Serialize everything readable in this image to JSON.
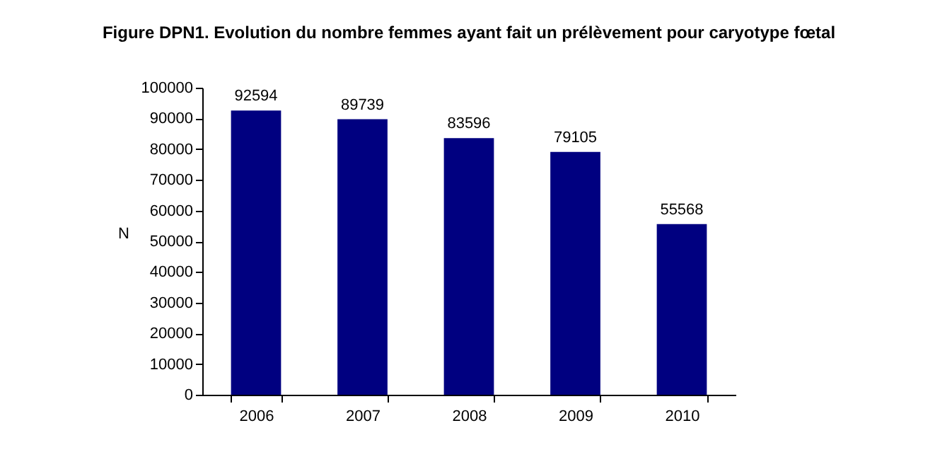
{
  "chart_data": {
    "type": "bar",
    "title": "Figure DPN1. Evolution du nombre femmes ayant fait un prélèvement pour caryotype fœtal",
    "ylabel": "N",
    "categories": [
      "2006",
      "2007",
      "2008",
      "2009",
      "2010"
    ],
    "values": [
      92594,
      89739,
      83596,
      79105,
      55568
    ],
    "color": "#000080",
    "ylim": [
      0,
      100000
    ],
    "yticks": [
      0,
      10000,
      20000,
      30000,
      40000,
      50000,
      60000,
      70000,
      80000,
      90000,
      100000
    ],
    "grid": false,
    "data_labels": true
  }
}
